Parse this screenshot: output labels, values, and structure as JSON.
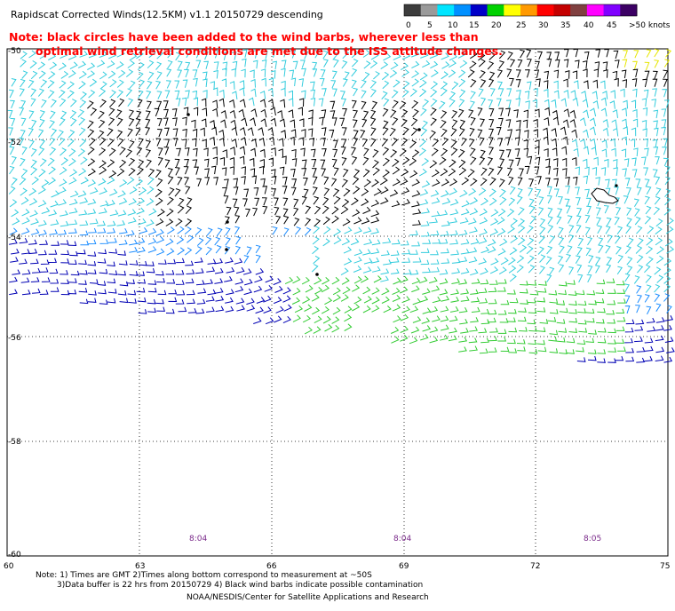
{
  "title": "Rapidscat Corrected Winds(12.5KM) v1.1 20150729 descending",
  "note": {
    "line1": "Note: black circles have been added to the wind barbs, wherever less than",
    "line2": "optimal wind retrieval conditions are met due to the ISS attitude changes."
  },
  "colorbar": {
    "labels": [
      "0",
      "5",
      "10",
      "15",
      "20",
      "25",
      "30",
      "35",
      "40",
      "45",
      ">50 knots"
    ],
    "colors": [
      "#3c3c3c",
      "#9a9a9a",
      "#00e5ff",
      "#0090ff",
      "#0000c8",
      "#00d200",
      "#ffff00",
      "#ff9900",
      "#ff0000",
      "#c40000",
      "#804040",
      "#ff00ff",
      "#8000ff",
      "#3c0064"
    ]
  },
  "lat_labels": [
    "-50",
    "-52",
    "-54",
    "-56",
    "-58",
    "-60"
  ],
  "lon_labels": [
    "60",
    "63",
    "66",
    "69",
    "72",
    "75"
  ],
  "time_labels": [
    "8:04",
    "8:04",
    "8:05"
  ],
  "footer": {
    "line1": "Note: 1) Times are GMT 2)Times along bottom correspond to measurement at ~50S",
    "line2": "3)Data buffer is 22 hrs from 20150729 4) Black wind barbs indicate possible contamination",
    "line3": "NOAA/NESDIS/Center for Satellite Applications and Research"
  },
  "barb_colors": {
    "contaminated": "#000000",
    "light": "#33ccdd",
    "moderate": "#1a8cff",
    "strong": "#0000b4",
    "very_strong": "#33cc33",
    "gale": "#e6e600"
  },
  "map_extent": {
    "lon_min": 60,
    "lon_max": 75,
    "lat_min": -60,
    "lat_max": -50
  }
}
